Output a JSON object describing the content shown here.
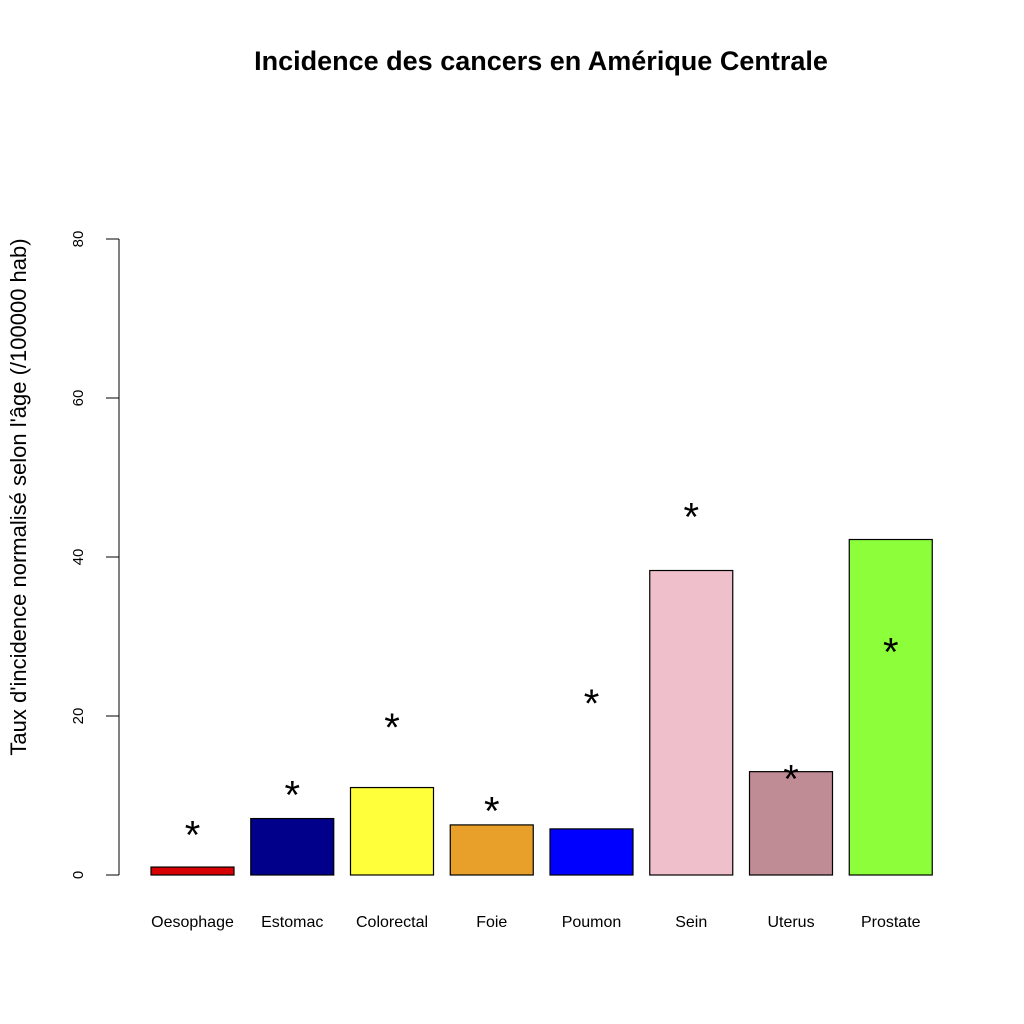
{
  "chart_data": {
    "type": "bar",
    "title": "Incidence des cancers en Amérique Centrale",
    "xlabel": "",
    "ylabel": "Taux d'incidence normalisé selon l'âge (/100000 hab)",
    "ylim": [
      0,
      80
    ],
    "yticks": [
      "0",
      "20",
      "40",
      "60",
      "80"
    ],
    "grid": false,
    "categories": [
      "Oesophage",
      "Estomac",
      "Colorectal",
      "Foie",
      "Poumon",
      "Sein",
      "Uterus",
      "Prostate"
    ],
    "values": [
      1.0,
      7.1,
      11.0,
      6.3,
      5.8,
      38.3,
      13.0,
      42.2
    ],
    "colors": [
      "#d60000",
      "#00008b",
      "#ffff3a",
      "#e8a02a",
      "#0000ff",
      "#efbfcb",
      "#bf8c96",
      "#8cff3a"
    ],
    "markers": {
      "symbol": "*",
      "values": [
        5.5,
        10.5,
        19.0,
        8.5,
        22.0,
        45.5,
        12.5,
        28.5
      ]
    }
  }
}
